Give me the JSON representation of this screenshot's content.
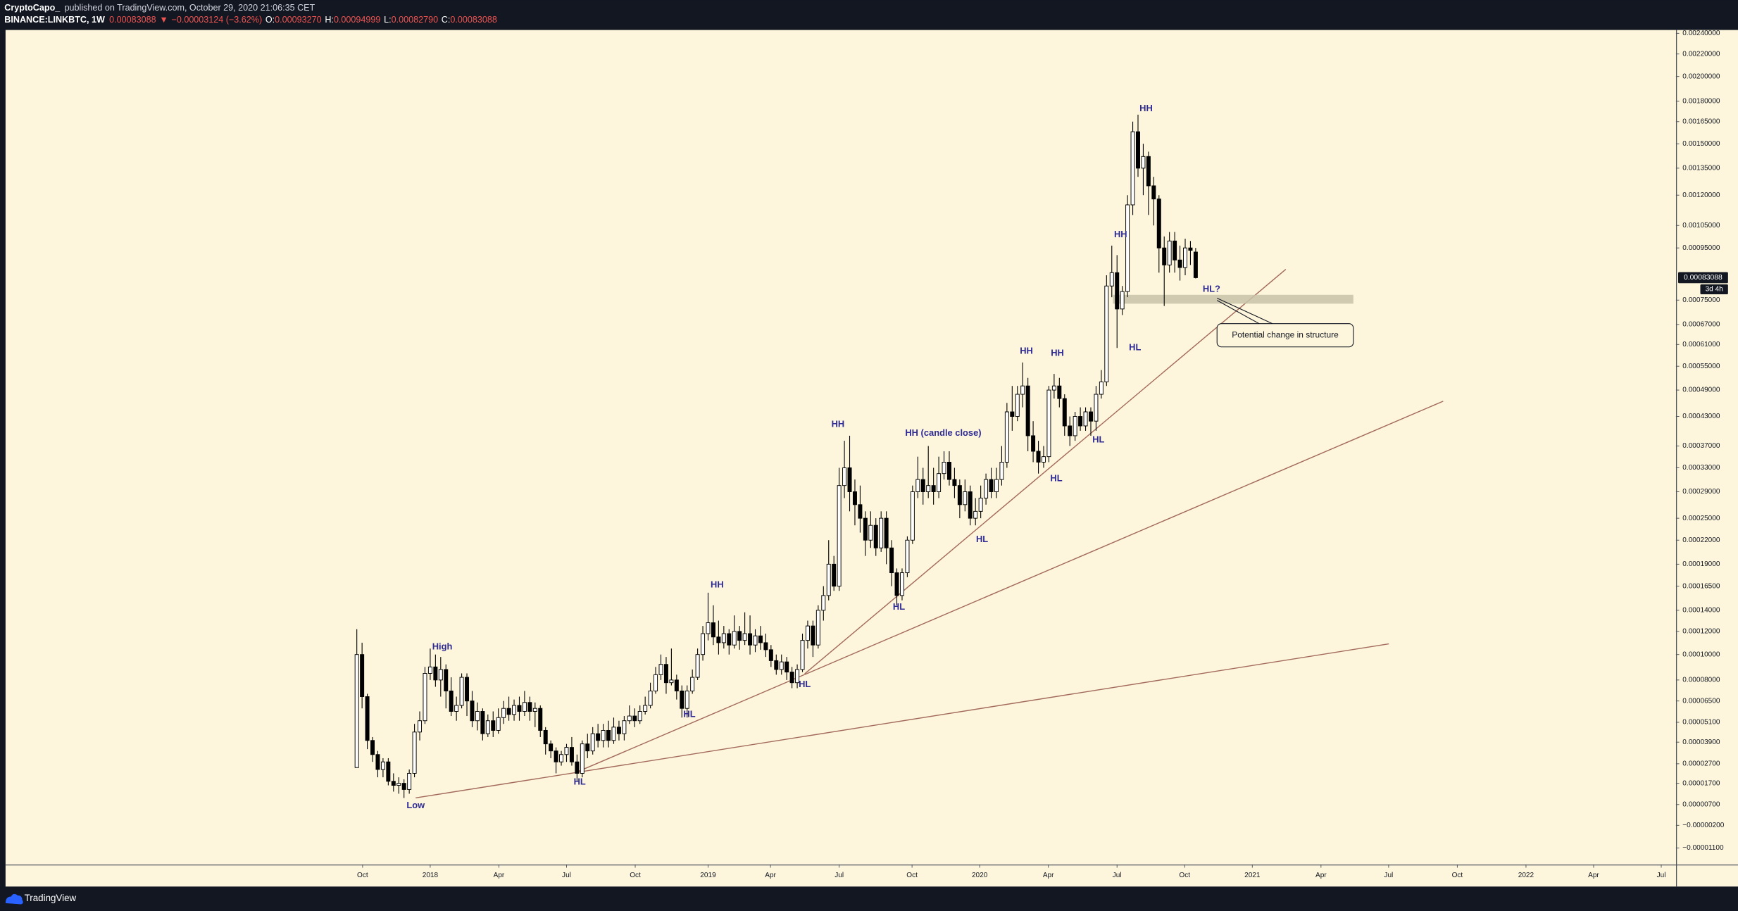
{
  "header": {
    "author": "CryptoCapo_",
    "published": "published on TradingView.com, October 29, 2020 21:06:35 CET",
    "symbol": "BINANCE:LINKBTC, 1W",
    "price": "0.00083088",
    "arrow": "▼",
    "change": "−0.00003124 (−3.62%)",
    "ohlc": [
      {
        "label": "O:",
        "value": "0.00093270"
      },
      {
        "label": "H:",
        "value": "0.00094999"
      },
      {
        "label": "L:",
        "value": "0.00082790"
      },
      {
        "label": "C:",
        "value": "0.00083088"
      }
    ]
  },
  "footer": {
    "brand": "TradingView"
  },
  "chart_data": {
    "type": "candlestick",
    "log_scale": true,
    "grid": false,
    "up_color": "#ffffff",
    "down_color": "#000000",
    "trendline_color": "#a36a5c",
    "xlim": [
      -67,
      251.6
    ],
    "xticks": [
      {
        "value": 1.1,
        "label": "Oct"
      },
      {
        "value": 14,
        "label": "2018"
      },
      {
        "value": 27.1,
        "label": "Apr"
      },
      {
        "value": 40,
        "label": "Jul"
      },
      {
        "value": 53.1,
        "label": "Oct"
      },
      {
        "value": 67,
        "label": "2019"
      },
      {
        "value": 78.9,
        "label": "Apr"
      },
      {
        "value": 92,
        "label": "Jul"
      },
      {
        "value": 105.9,
        "label": "Oct"
      },
      {
        "value": 118.8,
        "label": "2020"
      },
      {
        "value": 131.9,
        "label": "Apr"
      },
      {
        "value": 145,
        "label": "Jul"
      },
      {
        "value": 157.9,
        "label": "Oct"
      },
      {
        "value": 170.8,
        "label": "2021"
      },
      {
        "value": 183.9,
        "label": "Apr"
      },
      {
        "value": 196.8,
        "label": "Jul"
      },
      {
        "value": 209.9,
        "label": "Oct"
      },
      {
        "value": 223,
        "label": "2022"
      },
      {
        "value": 235.9,
        "label": "Apr"
      },
      {
        "value": 248.8,
        "label": "Jul"
      }
    ],
    "ylim": [
      -1.7e-05,
      0.002434
    ],
    "yticks": [
      {
        "value": 0.0024,
        "label": "0.00240000"
      },
      {
        "value": 0.0022,
        "label": "0.00220000"
      },
      {
        "value": 0.002,
        "label": "0.00200000"
      },
      {
        "value": 0.0018,
        "label": "0.00180000"
      },
      {
        "value": 0.00165,
        "label": "0.00165000"
      },
      {
        "value": 0.0015,
        "label": "0.00150000"
      },
      {
        "value": 0.00135,
        "label": "0.00135000"
      },
      {
        "value": 0.0012,
        "label": "0.00120000"
      },
      {
        "value": 0.00105,
        "label": "0.00105000"
      },
      {
        "value": 0.00095,
        "label": "0.00095000"
      },
      {
        "value": 0.00075,
        "label": "0.00075000"
      },
      {
        "value": 0.00067,
        "label": "0.00067000"
      },
      {
        "value": 0.00061,
        "label": "0.00061000"
      },
      {
        "value": 0.00055,
        "label": "0.00055000"
      },
      {
        "value": 0.00049,
        "label": "0.00049000"
      },
      {
        "value": 0.00043,
        "label": "0.00043000"
      },
      {
        "value": 0.00037,
        "label": "0.00037000"
      },
      {
        "value": 0.00033,
        "label": "0.00033000"
      },
      {
        "value": 0.00029,
        "label": "0.00029000"
      },
      {
        "value": 0.00025,
        "label": "0.00025000"
      },
      {
        "value": 0.00022,
        "label": "0.00022000"
      },
      {
        "value": 0.00019,
        "label": "0.00019000"
      },
      {
        "value": 0.000165,
        "label": "0.00016500"
      },
      {
        "value": 0.00014,
        "label": "0.00014000"
      },
      {
        "value": 0.00012,
        "label": "0.00012000"
      },
      {
        "value": 0.0001,
        "label": "0.00010000"
      },
      {
        "value": 8e-05,
        "label": "0.00008000"
      },
      {
        "value": 6.5e-05,
        "label": "0.00006500"
      },
      {
        "value": 5.1e-05,
        "label": "0.00005100"
      },
      {
        "value": 3.9e-05,
        "label": "0.00003900"
      },
      {
        "value": 2.7e-05,
        "label": "0.00002700"
      },
      {
        "value": 1.7e-05,
        "label": "0.00001700"
      },
      {
        "value": 7e-06,
        "label": "0.00000700"
      },
      {
        "value": -2e-06,
        "label": "−0.00000200"
      },
      {
        "value": -1.1e-05,
        "label": "−0.00001100"
      }
    ],
    "price_label": "0.00083088",
    "countdown": "3d 4h",
    "annotations": [
      "Low",
      "High",
      "HL",
      "HL",
      "HH",
      "HL",
      "HH",
      "HL",
      "HH (candle close)",
      "HL",
      "HH",
      "HH",
      "HL",
      "HL",
      "HH",
      "HL",
      "HH",
      "HL?"
    ],
    "callout": "Potential change in structure",
    "ohlc": [
      [
        2.5e-05,
        0.000122,
        2.5e-05,
        0.0001
      ],
      [
        0.0001,
        0.00011,
        6e-05,
        6.8e-05
      ],
      [
        6.8e-05,
        7e-05,
        3.5e-05,
        4e-05
      ],
      [
        4e-05,
        4.2e-05,
        2.8e-05,
        3.2e-05
      ],
      [
        3.2e-05,
        3.4e-05,
        2e-05,
        2.4e-05
      ],
      [
        2.4e-05,
        3e-05,
        2e-05,
        2.8e-05
      ],
      [
        2.8e-05,
        3e-05,
        1.6e-05,
        1.8e-05
      ],
      [
        1.8e-05,
        2.2e-05,
        1.3e-05,
        1.6e-05
      ],
      [
        1.6e-05,
        2e-05,
        1.2e-05,
        1.7e-05
      ],
      [
        1.7e-05,
        1.9e-05,
        1e-05,
        1.4e-05
      ],
      [
        1.4e-05,
        2.4e-05,
        1.2e-05,
        2.2e-05
      ],
      [
        2.2e-05,
        5e-05,
        2e-05,
        4.5e-05
      ],
      [
        4.5e-05,
        5.8e-05,
        4e-05,
        5.2e-05
      ],
      [
        5.2e-05,
        9e-05,
        5e-05,
        8.5e-05
      ],
      [
        8.5e-05,
        0.000105,
        8e-05,
        9e-05
      ],
      [
        9e-05,
        0.0001,
        7.5e-05,
        8e-05
      ],
      [
        8e-05,
        9.8e-05,
        6.8e-05,
        8.8e-05
      ],
      [
        8.8e-05,
        9.2e-05,
        6e-05,
        7.2e-05
      ],
      [
        7.2e-05,
        8.2e-05,
        5.5e-05,
        5.8e-05
      ],
      [
        5.8e-05,
        6.8e-05,
        5.2e-05,
        6.2e-05
      ],
      [
        6.2e-05,
        8.5e-05,
        6e-05,
        8.2e-05
      ],
      [
        8.2e-05,
        8.5e-05,
        5.5e-05,
        6.5e-05
      ],
      [
        6.5e-05,
        7.2e-05,
        4.8e-05,
        5.2e-05
      ],
      [
        5.2e-05,
        6.4e-05,
        4.6e-05,
        5.8e-05
      ],
      [
        5.8e-05,
        6e-05,
        4e-05,
        4.4e-05
      ],
      [
        4.4e-05,
        5.6e-05,
        4.2e-05,
        5.2e-05
      ],
      [
        5.2e-05,
        5.8e-05,
        4.2e-05,
        4.6e-05
      ],
      [
        4.6e-05,
        6e-05,
        4.4e-05,
        5.4e-05
      ],
      [
        5.4e-05,
        6.5e-05,
        5e-05,
        6e-05
      ],
      [
        6e-05,
        6.8e-05,
        5.2e-05,
        5.6e-05
      ],
      [
        5.6e-05,
        6.6e-05,
        5.2e-05,
        6.2e-05
      ],
      [
        6.2e-05,
        6.8e-05,
        5.2e-05,
        5.8e-05
      ],
      [
        5.8e-05,
        7.2e-05,
        5.5e-05,
        6.4e-05
      ],
      [
        6.4e-05,
        6.8e-05,
        5.2e-05,
        5.8e-05
      ],
      [
        5.8e-05,
        6.4e-05,
        4.8e-05,
        6e-05
      ],
      [
        6e-05,
        6.2e-05,
        4.2e-05,
        4.6e-05
      ],
      [
        4.6e-05,
        4.8e-05,
        3.2e-05,
        3.8e-05
      ],
      [
        3.8e-05,
        4e-05,
        3e-05,
        3.4e-05
      ],
      [
        3.4e-05,
        3.6e-05,
        2.2e-05,
        2.8e-05
      ],
      [
        2.8e-05,
        3.4e-05,
        2.6e-05,
        3.2e-05
      ],
      [
        3.2e-05,
        3.8e-05,
        2.8e-05,
        3.6e-05
      ],
      [
        3.6e-05,
        4.2e-05,
        2.6e-05,
        2.8e-05
      ],
      [
        2.8e-05,
        3.2e-05,
        1.8e-05,
        2.2e-05
      ],
      [
        2.2e-05,
        4e-05,
        2e-05,
        3.8e-05
      ],
      [
        3.8e-05,
        4.4e-05,
        3e-05,
        3.4e-05
      ],
      [
        3.4e-05,
        4.8e-05,
        3.2e-05,
        4.4e-05
      ],
      [
        4.4e-05,
        5e-05,
        3.6e-05,
        4e-05
      ],
      [
        4e-05,
        5e-05,
        3.6e-05,
        4.6e-05
      ],
      [
        4.6e-05,
        5.2e-05,
        3.6e-05,
        4e-05
      ],
      [
        4e-05,
        5.4e-05,
        3.8e-05,
        4.8e-05
      ],
      [
        4.8e-05,
        5.2e-05,
        4e-05,
        4.4e-05
      ],
      [
        4.4e-05,
        5.5e-05,
        4e-05,
        5.2e-05
      ],
      [
        5.2e-05,
        6.2e-05,
        5e-05,
        5.5e-05
      ],
      [
        5.5e-05,
        6e-05,
        4.8e-05,
        5.2e-05
      ],
      [
        5.2e-05,
        6.2e-05,
        5e-05,
        5.8e-05
      ],
      [
        5.8e-05,
        6.8e-05,
        5.6e-05,
        6.2e-05
      ],
      [
        6.2e-05,
        7.8e-05,
        6e-05,
        7.2e-05
      ],
      [
        7.2e-05,
        9e-05,
        7e-05,
        8.4e-05
      ],
      [
        8.4e-05,
        0.0001,
        8e-05,
        9.2e-05
      ],
      [
        9.2e-05,
        9.8e-05,
        7e-05,
        7.8e-05
      ],
      [
        7.8e-05,
        0.000105,
        7.6e-05,
        8e-05
      ],
      [
        8e-05,
        8.4e-05,
        6.6e-05,
        7.2e-05
      ],
      [
        7.2e-05,
        7.6e-05,
        5.4e-05,
        6e-05
      ],
      [
        6e-05,
        7.6e-05,
        5.4e-05,
        7.2e-05
      ],
      [
        7.2e-05,
        8.8e-05,
        7e-05,
        8.2e-05
      ],
      [
        8.2e-05,
        0.000105,
        8e-05,
        0.0001
      ],
      [
        0.0001,
        0.000125,
        9.5e-05,
        0.000118
      ],
      [
        0.000118,
        0.000158,
        0.000112,
        0.000128
      ],
      [
        0.000128,
        0.000145,
        0.000108,
        0.000115
      ],
      [
        0.000115,
        0.00013,
        0.0001,
        0.00011
      ],
      [
        0.00011,
        0.000125,
        0.000105,
        0.000118
      ],
      [
        0.000118,
        0.000122,
        0.0001,
        0.000108
      ],
      [
        0.000108,
        0.000135,
        0.000105,
        0.00012
      ],
      [
        0.00012,
        0.000125,
        0.000104,
        0.000112
      ],
      [
        0.000112,
        0.000138,
        0.000108,
        0.000118
      ],
      [
        0.000118,
        0.000135,
        0.0001,
        0.000108
      ],
      [
        0.000108,
        0.000122,
        0.000102,
        0.000116
      ],
      [
        0.000116,
        0.000125,
        0.000104,
        0.00011
      ],
      [
        0.00011,
        0.000118,
        9.8e-05,
        0.000104
      ],
      [
        0.000104,
        0.000108,
        9e-05,
        9.5e-05
      ],
      [
        9.5e-05,
        0.0001,
        8.4e-05,
        8.8e-05
      ],
      [
        8.8e-05,
        0.0001,
        8.4e-05,
        9.4e-05
      ],
      [
        9.4e-05,
        9.8e-05,
        8e-05,
        8.6e-05
      ],
      [
        8.6e-05,
        9e-05,
        7.4e-05,
        7.8e-05
      ],
      [
        7.8e-05,
        9.2e-05,
        7.4e-05,
        8.8e-05
      ],
      [
        8.8e-05,
        0.000118,
        8.6e-05,
        0.000112
      ],
      [
        0.000112,
        0.00013,
        0.000105,
        0.000125
      ],
      [
        0.000125,
        0.00013,
        9.8e-05,
        0.000108
      ],
      [
        0.000108,
        0.000145,
        0.000105,
        0.00014
      ],
      [
        0.00014,
        0.000165,
        0.00013,
        0.000155
      ],
      [
        0.000155,
        0.00022,
        0.00015,
        0.00019
      ],
      [
        0.00019,
        0.0002,
        0.00016,
        0.000165
      ],
      [
        0.000165,
        0.00033,
        0.00016,
        0.0003
      ],
      [
        0.0003,
        0.00038,
        0.00028,
        0.00033
      ],
      [
        0.00033,
        0.00039,
        0.00026,
        0.00029
      ],
      [
        0.00029,
        0.00031,
        0.00024,
        0.00027
      ],
      [
        0.00027,
        0.0003,
        0.00023,
        0.00025
      ],
      [
        0.00025,
        0.00026,
        0.0002,
        0.00022
      ],
      [
        0.00022,
        0.00026,
        0.00021,
        0.00024
      ],
      [
        0.00024,
        0.00025,
        0.0002,
        0.00021
      ],
      [
        0.00021,
        0.00026,
        0.000205,
        0.00025
      ],
      [
        0.00025,
        0.00026,
        0.00019,
        0.00021
      ],
      [
        0.00021,
        0.00022,
        0.000165,
        0.00018
      ],
      [
        0.00018,
        0.000185,
        0.000145,
        0.000155
      ],
      [
        0.000155,
        0.000185,
        0.00015,
        0.00018
      ],
      [
        0.00018,
        0.000225,
        0.000175,
        0.00022
      ],
      [
        0.00022,
        0.0003,
        0.000215,
        0.00029
      ],
      [
        0.00029,
        0.00035,
        0.00028,
        0.00031
      ],
      [
        0.00031,
        0.00033,
        0.00027,
        0.00029
      ],
      [
        0.00029,
        0.00037,
        0.00028,
        0.0003
      ],
      [
        0.0003,
        0.00033,
        0.00027,
        0.00029
      ],
      [
        0.00029,
        0.00035,
        0.00028,
        0.00032
      ],
      [
        0.00032,
        0.00036,
        0.00031,
        0.00034
      ],
      [
        0.00034,
        0.00036,
        0.0003,
        0.00031
      ],
      [
        0.00031,
        0.00033,
        0.00028,
        0.0003
      ],
      [
        0.0003,
        0.00031,
        0.00025,
        0.00027
      ],
      [
        0.00027,
        0.00031,
        0.00026,
        0.00029
      ],
      [
        0.00029,
        0.0003,
        0.00024,
        0.00025
      ],
      [
        0.00025,
        0.00028,
        0.00024,
        0.00026
      ],
      [
        0.00026,
        0.0003,
        0.00025,
        0.00028
      ],
      [
        0.00028,
        0.00032,
        0.00027,
        0.00031
      ],
      [
        0.00031,
        0.00033,
        0.00028,
        0.00029
      ],
      [
        0.00029,
        0.00033,
        0.00028,
        0.00031
      ],
      [
        0.00031,
        0.00037,
        0.0003,
        0.00034
      ],
      [
        0.00034,
        0.00046,
        0.00033,
        0.00044
      ],
      [
        0.00044,
        0.0005,
        0.0004,
        0.00043
      ],
      [
        0.00043,
        0.0005,
        0.00042,
        0.00048
      ],
      [
        0.00048,
        0.00056,
        0.00045,
        0.0005
      ],
      [
        0.0005,
        0.00052,
        0.00036,
        0.00039
      ],
      [
        0.00039,
        0.00042,
        0.00034,
        0.00036
      ],
      [
        0.00036,
        0.00038,
        0.00032,
        0.00034
      ],
      [
        0.00034,
        0.00037,
        0.00033,
        0.00035
      ],
      [
        0.00035,
        0.0005,
        0.00034,
        0.00049
      ],
      [
        0.00049,
        0.00053,
        0.00047,
        0.0005
      ],
      [
        0.0005,
        0.00052,
        0.00045,
        0.00047
      ],
      [
        0.00047,
        0.00048,
        0.00039,
        0.00041
      ],
      [
        0.00041,
        0.00043,
        0.00037,
        0.00039
      ],
      [
        0.00039,
        0.00044,
        0.00038,
        0.00043
      ],
      [
        0.00043,
        0.00045,
        0.0004,
        0.00041
      ],
      [
        0.00041,
        0.00045,
        0.0004,
        0.00044
      ],
      [
        0.00044,
        0.00045,
        0.00039,
        0.00042
      ],
      [
        0.00042,
        0.0005,
        0.0004,
        0.00048
      ],
      [
        0.00048,
        0.00054,
        0.00047,
        0.00051
      ],
      [
        0.00051,
        0.00084,
        0.0005,
        0.0008
      ],
      [
        0.0008,
        0.00096,
        0.00076,
        0.00085
      ],
      [
        0.00085,
        0.00092,
        0.0006,
        0.00072
      ],
      [
        0.00072,
        0.0008,
        0.0007,
        0.00078
      ],
      [
        0.00078,
        0.0012,
        0.00076,
        0.00115
      ],
      [
        0.00115,
        0.00165,
        0.0011,
        0.00158
      ],
      [
        0.00158,
        0.0017,
        0.0013,
        0.00135
      ],
      [
        0.00135,
        0.0015,
        0.0012,
        0.00142
      ],
      [
        0.00142,
        0.00145,
        0.0011,
        0.00125
      ],
      [
        0.00125,
        0.0013,
        0.00105,
        0.00118
      ],
      [
        0.00118,
        0.0012,
        0.00085,
        0.00095
      ],
      [
        0.00095,
        0.001,
        0.00073,
        0.00088
      ],
      [
        0.00088,
        0.00102,
        0.00085,
        0.00098
      ],
      [
        0.00098,
        0.00102,
        0.00085,
        0.0009
      ],
      [
        0.0009,
        0.00096,
        0.00082,
        0.00087
      ],
      [
        0.00087,
        0.00099,
        0.00084,
        0.00095
      ],
      [
        0.00095,
        0.00098,
        0.00088,
        0.00094
      ],
      [
        0.0009327,
        0.00094999,
        0.0008279,
        0.00083088
      ]
    ]
  }
}
